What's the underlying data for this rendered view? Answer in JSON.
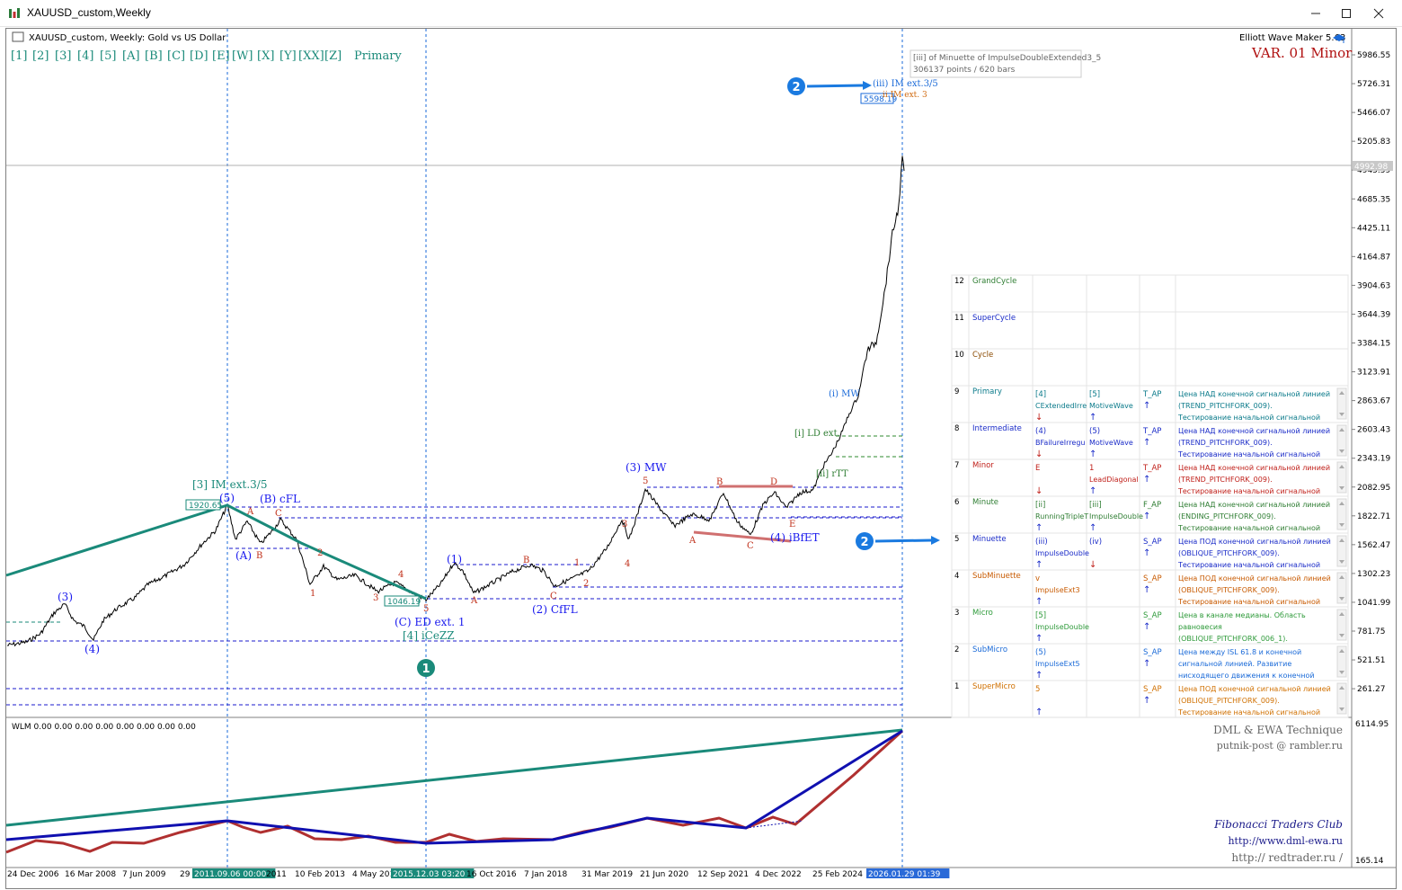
{
  "window": {
    "title": "XAUUSD_custom,Weekly",
    "controls": [
      "minimize",
      "maximize",
      "close"
    ]
  },
  "chart": {
    "header": "XAUUSD_custom, Weekly:  Gold vs US Dollar",
    "wave_buttons": [
      "[1]",
      "[2]",
      "[3]",
      "[4]",
      "[5]",
      "[A]",
      "[B]",
      "[C]",
      "[D]",
      "[E]",
      "[W]",
      "[X]",
      "[Y]",
      "[XX]",
      "[Z]"
    ],
    "degree_label": "Primary",
    "indicator_name": "Elliott Wave Maker 5.63",
    "variant": "VAR. 01 Minor",
    "info_box": {
      "line1": "[iii] of Minuette of ImpulseDoubleExtended3_5",
      "line2": "306137 points / 620 bars"
    },
    "current_price": "4992.98",
    "price_axis": [
      "5986.55",
      "5726.31",
      "5466.07",
      "5205.83",
      "4945.59",
      "4685.35",
      "4425.11",
      "4164.87",
      "3904.63",
      "3644.39",
      "3384.15",
      "3123.91",
      "2863.67",
      "2603.43",
      "2343.19",
      "2082.95",
      "1822.71",
      "1562.47",
      "1302.23",
      "1041.99",
      "781.75",
      "521.51",
      "261.27"
    ],
    "price_tags": {
      "high_2011": "1920.65",
      "low_2015": "1046.19",
      "target": "5598.19"
    },
    "wave_labels": {
      "p3_2008": "(3)",
      "p4_2008": "(4)",
      "im_2011_title": "[3] IM ext.3/5",
      "p5_2011": "(5)",
      "pA": "(A)",
      "pB_cfl": "(B) cFL",
      "a_red": "A",
      "b_red": "B",
      "c_red": "C",
      "n1": "1",
      "n2": "2",
      "n3": "3",
      "n4": "4",
      "n5": "5",
      "c_ed": "(C) ED ext. 1",
      "l4_icezz": "[4] iCeZZ",
      "p1_2016": "(1)",
      "a2": "A",
      "b2": "B",
      "c2": "C",
      "one2": "1",
      "two2": "2",
      "p2_cfl": "(2) CfFL",
      "three2": "3",
      "four2": "4",
      "p3_mw": "(3) MW",
      "five2": "5",
      "a3": "A",
      "b3": "B",
      "c3": "C",
      "d3": "D",
      "e3": "E",
      "p4_ibfet": "(4) iBfET",
      "iii_im": "(iii) IM ext.3/5",
      "im_ext3": "ii IM ext. 3",
      "i_mw": "(i) MW",
      "i_ld": "[i] LD ext.",
      "ii_rtt": "[ii] rTT",
      "circle_1": "1",
      "circle_2": "2",
      "circle_2b": "2"
    }
  },
  "wave_table": {
    "rows": [
      {
        "n": "12",
        "degree": "GrandCycle",
        "color": "#2e7d32",
        "c1": "",
        "c2": "",
        "c3": "",
        "c4": ""
      },
      {
        "n": "11",
        "degree": "SuperCycle",
        "color": "#1a2bc8",
        "c1": "",
        "c2": "",
        "c3": "",
        "c4": ""
      },
      {
        "n": "10",
        "degree": "Cycle",
        "color": "#8a4a00",
        "c1": "",
        "c2": "",
        "c3": "",
        "c4": ""
      },
      {
        "n": "9",
        "degree": "Primary",
        "color": "#0a7a8a",
        "c1": "[4]",
        "c1b": "CExtendedIrre",
        "c1d": "↓",
        "c2": "[5]",
        "c2b": "MotiveWave",
        "c2d": "↑",
        "c3": "T_AP",
        "c3d": "↑",
        "c4": "Цена НАД конечной сигнальной линией",
        "c4b": "(TREND_PITCHFORK_009).",
        "c4c": "Тестирование начальной сигнальной"
      },
      {
        "n": "8",
        "degree": "Intermediate",
        "color": "#1a2bc8",
        "c1": "(4)",
        "c1b": "BFailureIrregu",
        "c1d": "↓",
        "c2": "(5)",
        "c2b": "MotiveWave",
        "c2d": "↑",
        "c3": "T_AP",
        "c3d": "↑",
        "c4": "Цена НАД конечной сигнальной линией",
        "c4b": "(TREND_PITCHFORK_009).",
        "c4c": "Тестирование начальной сигнальной"
      },
      {
        "n": "7",
        "degree": "Minor",
        "color": "#c0201a",
        "c1": "E",
        "c1b": "",
        "c1d": "↓",
        "c2": "1",
        "c2b": "LeadDiagonal",
        "c2d": "↑",
        "c3": "T_AP",
        "c3d": "↑",
        "c4": "Цена НАД конечной сигнальной линией",
        "c4b": "(TREND_PITCHFORK_009).",
        "c4c": "Тестирование начальной сигнальной"
      },
      {
        "n": "6",
        "degree": "Minute",
        "color": "#2e7d32",
        "c1": "[ii]",
        "c1b": "RunningTripleT",
        "c1d": "↑",
        "c2": "[iii]",
        "c2b": "ImpulseDouble",
        "c2d": "↑",
        "c3": "F_AP",
        "c3d": "↑",
        "c4": "Цена НАД конечной сигнальной линией",
        "c4b": "(ENDING_PITCHFORK_009).",
        "c4c": "Тестирование начальной сигнальной"
      },
      {
        "n": "5",
        "degree": "Minuette",
        "color": "#1a2bc8",
        "c1": "(iii)",
        "c1b": "ImpulseDouble",
        "c1d": "↑",
        "c2": "(iv)",
        "c2b": "",
        "c2d": "↓",
        "c3": "S_AP",
        "c3d": "↑",
        "c4": "Цена ПОД конечной сигнальной линией",
        "c4b": "(OBLIQUE_PITCHFORK_009).",
        "c4c": "Тестирование начальной сигнальной"
      },
      {
        "n": "4",
        "degree": "SubMinuette",
        "color": "#c85a00",
        "c1": "v",
        "c1b": "ImpulseExt3",
        "c1d": "↑",
        "c2": "",
        "c2b": "",
        "c2d": "",
        "c3": "S_AP",
        "c3d": "↑",
        "c4": "Цена ПОД конечной сигнальной линией",
        "c4b": "(OBLIQUE_PITCHFORK_009).",
        "c4c": "Тестирование начальной сигнальной"
      },
      {
        "n": "3",
        "degree": "Micro",
        "color": "#2e9a3a",
        "c1": "[5]",
        "c1b": "ImpulseDouble",
        "c1d": "↑",
        "c2": "",
        "c2b": "",
        "c2d": "",
        "c3": "S_AP",
        "c3d": "↑",
        "c4": "Цена в канале медианы. Область",
        "c4b": "равновесия",
        "c4c": "(OBLIQUE_PITCHFORK_006_1)."
      },
      {
        "n": "2",
        "degree": "SubMicro",
        "color": "#1a6ad8",
        "c1": "(5)",
        "c1b": "ImpulseExt5",
        "c1d": "↑",
        "c2": "",
        "c2b": "",
        "c2d": "",
        "c3": "S_AP",
        "c3d": "↑",
        "c4": "Цена между ISL 61.8 и конечной",
        "c4b": "сигнальной линией. Развитие",
        "c4c": "нисходящего движения к конечной"
      },
      {
        "n": "1",
        "degree": "SuperMicro",
        "color": "#d07000",
        "c1": "5",
        "c1b": "",
        "c1d": "↑",
        "c2": "",
        "c2b": "",
        "c2d": "",
        "c3": "S_AP",
        "c3d": "↑",
        "c4": "Цена ПОД конечной сигнальной линией",
        "c4b": "(OBLIQUE_PITCHFORK_009).",
        "c4c": "Тестирование начальной сигнальной"
      }
    ]
  },
  "subwindow": {
    "label": "WLM 0.00 0.00 0.00 0.00 0.00 0.00 0.00 0.00",
    "scale_top": "6114.95",
    "scale_bottom": "165.14",
    "credits": [
      "DML & EWA Technique",
      "putnik-post @ rambler.ru",
      "Fibonacci    Traders    Club",
      "http://www.dml-ewa.ru",
      "http:// redtrader.ru /"
    ]
  },
  "time_axis": [
    "24 Dec 2006",
    "16 Mar 2008",
    "7 Jun 2009",
    "29",
    "2011.09.06 00:00",
    "2011",
    "10 Feb 2013",
    "4 May 201",
    "2015.12.03 03:20",
    "16 Oct 2016",
    "7 Jan 2018",
    "31 Mar 2019",
    "21 Jun 2020",
    "12 Sep 2021",
    "4 Dec 2022",
    "25 Feb 2024",
    "2026.01.29 01:39"
  ],
  "colors": {
    "teal": "#1a8a7a",
    "blue_wave": "#1a1aee",
    "red_wave": "#c0301a",
    "dark_red_line": "#b03030",
    "navy_line": "#1010b0",
    "axis_highlight": "#1a8a7a"
  }
}
